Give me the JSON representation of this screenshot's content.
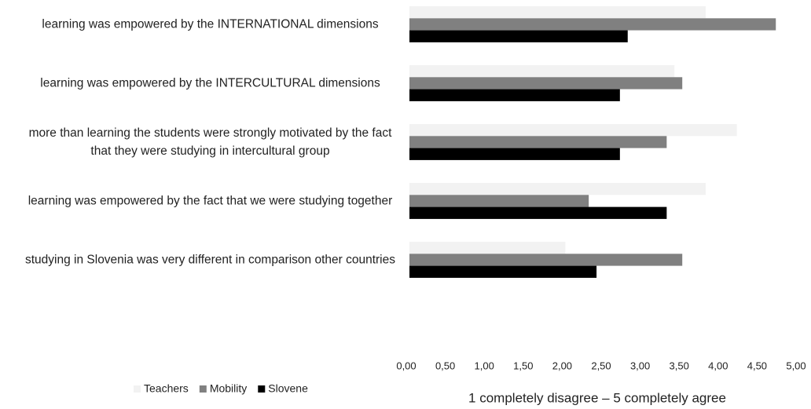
{
  "chart_data": {
    "type": "barh",
    "categories": [
      "learning was empowered by the INTERNATIONAL dimensions",
      "learning was empowered by the INTERCULTURAL dimensions",
      "more than learning the students were strongly motivated by the fact that they were studying in intercultural group",
      "learning was empowered by the fact that we were studying together",
      "studying in Slovenia was very different in comparison other countries"
    ],
    "series": [
      {
        "name": "Teachers",
        "color": "#f2f2f2",
        "values": [
          3.8,
          3.4,
          4.2,
          3.8,
          2.0
        ]
      },
      {
        "name": "Mobility",
        "color": "#808080",
        "values": [
          4.7,
          3.5,
          3.3,
          2.3,
          3.5
        ]
      },
      {
        "name": "Slovene",
        "color": "#000000",
        "values": [
          2.8,
          2.7,
          2.7,
          3.3,
          2.4
        ]
      }
    ],
    "xlabel": "1 completely disagree – 5 completely agree",
    "xlim": [
      0,
      5
    ],
    "xticks": [
      {
        "value": 0,
        "label": "0,00"
      },
      {
        "value": 0.5,
        "label": "0,50"
      },
      {
        "value": 1,
        "label": "1,00"
      },
      {
        "value": 1.5,
        "label": "1,50"
      },
      {
        "value": 2,
        "label": "2,00"
      },
      {
        "value": 2.5,
        "label": "2,50"
      },
      {
        "value": 3,
        "label": "3,00"
      },
      {
        "value": 3.5,
        "label": "3,50"
      },
      {
        "value": 4,
        "label": "4,00"
      },
      {
        "value": 4.5,
        "label": "4,50"
      },
      {
        "value": 5,
        "label": "5,00"
      }
    ],
    "grid": false,
    "legend": "bottom-left"
  }
}
